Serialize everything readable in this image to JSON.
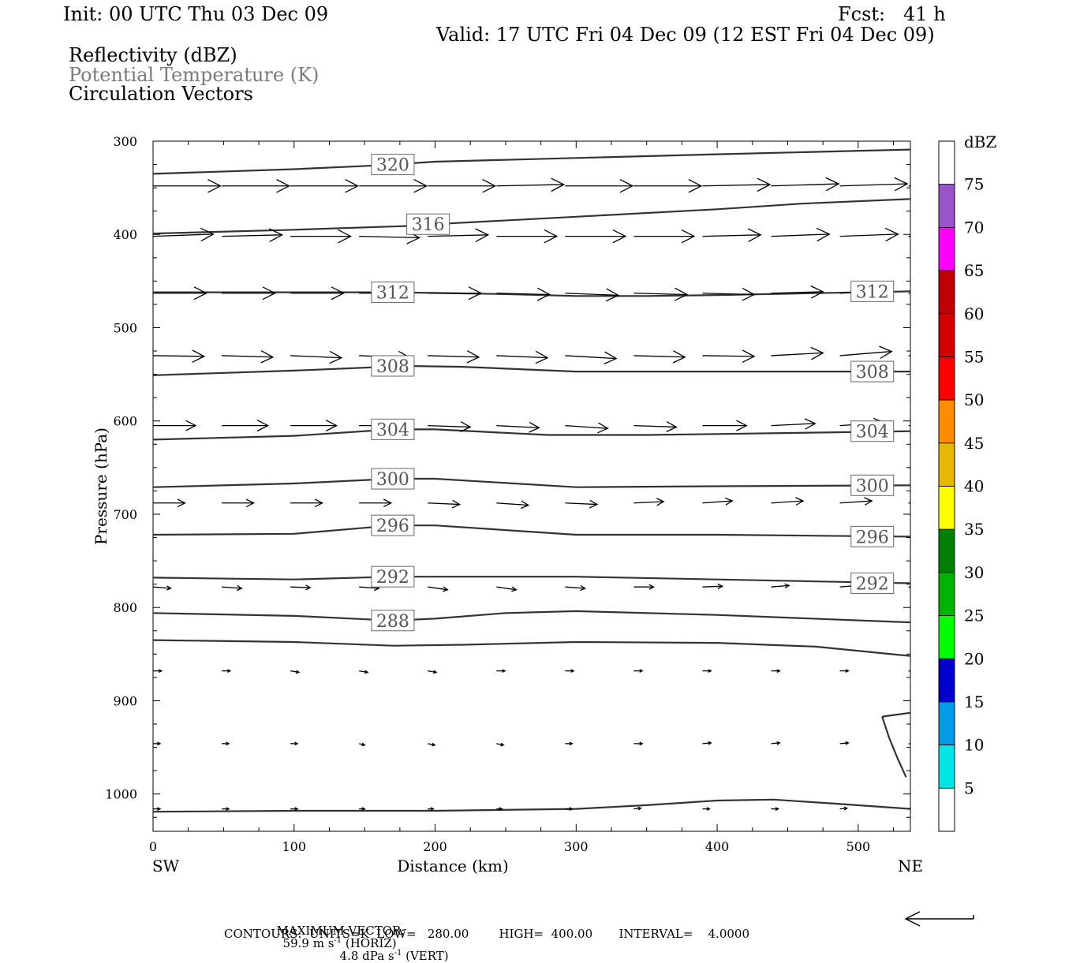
{
  "header": {
    "init": "Init: 00 UTC Thu 03 Dec 09",
    "fcst": "Fcst:   41 h",
    "valid": "Valid: 17 UTC Fri 04 Dec 09 (12 EST Fri 04 Dec 09)",
    "field1": "Reflectivity (dBZ)",
    "field2": "Potential Temperature (K)",
    "field3": "Circulation Vectors"
  },
  "footer": {
    "max_vector_label": "MAXIMUM VECTOR:",
    "horiz_value": "59.9 m s",
    "horiz_label": " (HORIZ)",
    "vert_value": "4.8 dPa s",
    "vert_label": " (VERT)",
    "exponent": "-1",
    "contours": "CONTOURS:  UNITS=K  LOW=   280.00        HIGH=  400.00       INTERVAL=    4.0000"
  },
  "chart_data": {
    "type": "cross-section",
    "xlabel": "Distance (km)",
    "ylabel": "Pressure (hPa)",
    "xlim": [
      0,
      537
    ],
    "ylim": [
      300,
      1040
    ],
    "x_ticks": [
      0,
      100,
      200,
      300,
      400,
      500
    ],
    "y_ticks": [
      300,
      400,
      500,
      600,
      700,
      800,
      900,
      1000
    ],
    "x_end_labels": {
      "left": "SW",
      "right": "NE"
    },
    "contour_lines": [
      {
        "level": "320",
        "points": [
          [
            0,
            335
          ],
          [
            100,
            330
          ],
          [
            160,
            326
          ],
          [
            200,
            322
          ],
          [
            300,
            318
          ],
          [
            400,
            314
          ],
          [
            537,
            309
          ]
        ],
        "labels": [
          [
            170,
            325
          ]
        ]
      },
      {
        "level": "316",
        "points": [
          [
            0,
            399
          ],
          [
            100,
            395
          ],
          [
            180,
            391
          ],
          [
            200,
            389
          ],
          [
            300,
            381
          ],
          [
            400,
            373
          ],
          [
            460,
            367
          ],
          [
            537,
            362
          ]
        ],
        "labels": [
          [
            195,
            389
          ]
        ]
      },
      {
        "level": "312",
        "points": [
          [
            0,
            462
          ],
          [
            100,
            462
          ],
          [
            170,
            462
          ],
          [
            250,
            464
          ],
          [
            300,
            466
          ],
          [
            350,
            466
          ],
          [
            400,
            465
          ],
          [
            470,
            463
          ],
          [
            537,
            461
          ]
        ],
        "labels": [
          [
            170,
            462
          ],
          [
            510,
            461
          ]
        ]
      },
      {
        "level": "308",
        "points": [
          [
            0,
            551
          ],
          [
            100,
            546
          ],
          [
            180,
            541
          ],
          [
            220,
            542
          ],
          [
            300,
            547
          ],
          [
            400,
            547
          ],
          [
            537,
            547
          ]
        ],
        "labels": [
          [
            170,
            541
          ],
          [
            510,
            547
          ]
        ]
      },
      {
        "level": "304",
        "points": [
          [
            0,
            620
          ],
          [
            100,
            616
          ],
          [
            170,
            609
          ],
          [
            200,
            609
          ],
          [
            280,
            615
          ],
          [
            350,
            615
          ],
          [
            400,
            614
          ],
          [
            537,
            611
          ]
        ],
        "labels": [
          [
            170,
            609
          ],
          [
            510,
            611
          ]
        ]
      },
      {
        "level": "300",
        "points": [
          [
            0,
            671
          ],
          [
            100,
            667
          ],
          [
            170,
            662
          ],
          [
            200,
            662
          ],
          [
            300,
            671
          ],
          [
            400,
            670
          ],
          [
            537,
            669
          ]
        ],
        "labels": [
          [
            170,
            662
          ],
          [
            510,
            669
          ]
        ]
      },
      {
        "level": "296",
        "points": [
          [
            0,
            722
          ],
          [
            100,
            721
          ],
          [
            170,
            712
          ],
          [
            200,
            712
          ],
          [
            300,
            722
          ],
          [
            400,
            722
          ],
          [
            537,
            724
          ]
        ],
        "labels": [
          [
            170,
            712
          ],
          [
            510,
            724
          ]
        ]
      },
      {
        "level": "292",
        "points": [
          [
            0,
            768
          ],
          [
            100,
            770
          ],
          [
            170,
            767
          ],
          [
            200,
            767
          ],
          [
            300,
            767
          ],
          [
            400,
            770
          ],
          [
            537,
            774
          ]
        ],
        "labels": [
          [
            170,
            767
          ],
          [
            510,
            774
          ]
        ]
      },
      {
        "level": "288",
        "points": [
          [
            0,
            806
          ],
          [
            100,
            809
          ],
          [
            170,
            814
          ],
          [
            200,
            812
          ],
          [
            250,
            806
          ],
          [
            300,
            804
          ],
          [
            400,
            808
          ],
          [
            537,
            816
          ]
        ],
        "labels": [
          [
            170,
            814
          ]
        ]
      },
      {
        "level": "",
        "points": [
          [
            0,
            835
          ],
          [
            100,
            837
          ],
          [
            170,
            841
          ],
          [
            220,
            840
          ],
          [
            300,
            837
          ],
          [
            400,
            838
          ],
          [
            470,
            842
          ],
          [
            537,
            852
          ]
        ],
        "labels": []
      },
      {
        "level": "",
        "points": [
          [
            0,
            1019
          ],
          [
            100,
            1018
          ],
          [
            200,
            1018
          ],
          [
            300,
            1016
          ],
          [
            350,
            1012
          ],
          [
            400,
            1007
          ],
          [
            440,
            1006
          ],
          [
            480,
            1010
          ],
          [
            537,
            1016
          ]
        ],
        "labels": []
      },
      {
        "level": "",
        "points": [
          [
            517,
            917
          ],
          [
            537,
            913
          ],
          [
            537,
            913
          ]
        ],
        "labels": []
      },
      {
        "level": "",
        "points": [
          [
            517,
            917
          ],
          [
            522,
            940
          ],
          [
            528,
            962
          ],
          [
            534,
            982
          ]
        ],
        "labels": []
      }
    ],
    "vectors": [
      {
        "p": 348,
        "u": [
          0.95,
          0.95,
          0.95,
          0.95,
          0.95,
          0.95,
          0.95,
          0.95,
          0.95,
          0.95,
          0.95,
          0.95
        ],
        "v": [
          0,
          0,
          0,
          0,
          0,
          -0.02,
          0,
          0,
          -0.02,
          -0.03,
          -0.03,
          -0.03
        ]
      },
      {
        "p": 402,
        "u": [
          0.85,
          0.85,
          0.85,
          0.85,
          0.85,
          0.85,
          0.85,
          0.85,
          0.82,
          0.82,
          0.82,
          0.82
        ],
        "v": [
          -0.03,
          -0.02,
          0,
          0.02,
          -0.02,
          0,
          0,
          0,
          -0.02,
          -0.03,
          -0.03,
          -0.02
        ]
      },
      {
        "p": 463,
        "u": [
          0.75,
          0.75,
          0.75,
          0.75,
          0.75,
          0.75,
          0.75,
          0.75,
          0.73,
          0.73,
          0.72,
          0.72
        ],
        "v": [
          0,
          0,
          0,
          0,
          0,
          0.02,
          0.03,
          0.02,
          0.02,
          -0.02,
          -0.03,
          -0.03
        ]
      },
      {
        "p": 530,
        "u": [
          0.72,
          0.72,
          0.72,
          0.72,
          0.72,
          0.72,
          0.72,
          0.72,
          0.73,
          0.73,
          0.73,
          0.73
        ],
        "v": [
          0.01,
          0.02,
          0.03,
          0.03,
          0.02,
          0.03,
          0.04,
          0.02,
          0.01,
          -0.04,
          -0.06,
          -0.03
        ]
      },
      {
        "p": 605,
        "u": [
          0.6,
          0.65,
          0.65,
          0.65,
          0.6,
          0.6,
          0.6,
          0.6,
          0.62,
          0.62,
          0.62,
          0.62
        ],
        "v": [
          0,
          0,
          0,
          0,
          0.02,
          0.03,
          0.04,
          0.02,
          0,
          -0.03,
          -0.04,
          -0.02
        ]
      },
      {
        "p": 688,
        "u": [
          0.45,
          0.45,
          0.45,
          0.45,
          0.45,
          0.45,
          0.45,
          0.42,
          0.42,
          0.45,
          0.45,
          0.45
        ],
        "v": [
          0,
          0,
          0,
          0,
          0.02,
          0.03,
          0.02,
          -0.02,
          -0.03,
          -0.03,
          -0.03,
          -0.02
        ]
      },
      {
        "p": 778,
        "u": [
          0.25,
          0.28,
          0.28,
          0.28,
          0.28,
          0.28,
          0.28,
          0.28,
          0.28,
          0.25,
          0.25,
          0.25
        ],
        "v": [
          0.02,
          0.02,
          0.01,
          0.02,
          0.04,
          0.04,
          0.02,
          0,
          -0.01,
          -0.02,
          -0.02,
          0
        ]
      },
      {
        "p": 868,
        "u": [
          0.12,
          0.12,
          0.12,
          0.12,
          0.12,
          0.12,
          0.12,
          0.12,
          0.12,
          0.12,
          0.12,
          0.12
        ],
        "v": [
          0,
          0,
          0.02,
          0.02,
          0.02,
          0,
          0,
          0,
          0,
          0,
          0,
          0.02
        ]
      },
      {
        "p": 946,
        "u": [
          0.1,
          0.1,
          0.1,
          0.08,
          0.1,
          0.1,
          0.1,
          0.12,
          0.12,
          0.12,
          0.12,
          0.12
        ],
        "v": [
          0,
          0,
          0,
          0.02,
          0.02,
          0.02,
          0,
          0,
          -0.01,
          -0.01,
          -0.01,
          0.02
        ]
      },
      {
        "p": 1016,
        "u": [
          0.1,
          0.1,
          0.1,
          0.08,
          0.08,
          0.08,
          0.1,
          0.1,
          0.1,
          0.1,
          0.1,
          0.1
        ],
        "v": [
          0,
          0,
          0,
          0,
          0,
          0,
          0,
          -0.01,
          0,
          0,
          -0.01,
          0
        ]
      }
    ],
    "vector_x_start": 0,
    "vector_x_step": 48.7,
    "colorbar": {
      "title": "dBZ",
      "labels": [
        "75",
        "70",
        "65",
        "60",
        "55",
        "50",
        "45",
        "40",
        "35",
        "30",
        "25",
        "20",
        "15",
        "10",
        "5"
      ],
      "colors": [
        "#ffffff",
        "#9954c9",
        "#ff00ff",
        "#c00000",
        "#d40000",
        "#ff0000",
        "#ff8c00",
        "#e6b800",
        "#ffff00",
        "#008000",
        "#00b300",
        "#00ff00",
        "#0000cc",
        "#0099e6",
        "#00e6e6",
        "#ffffff"
      ]
    }
  }
}
